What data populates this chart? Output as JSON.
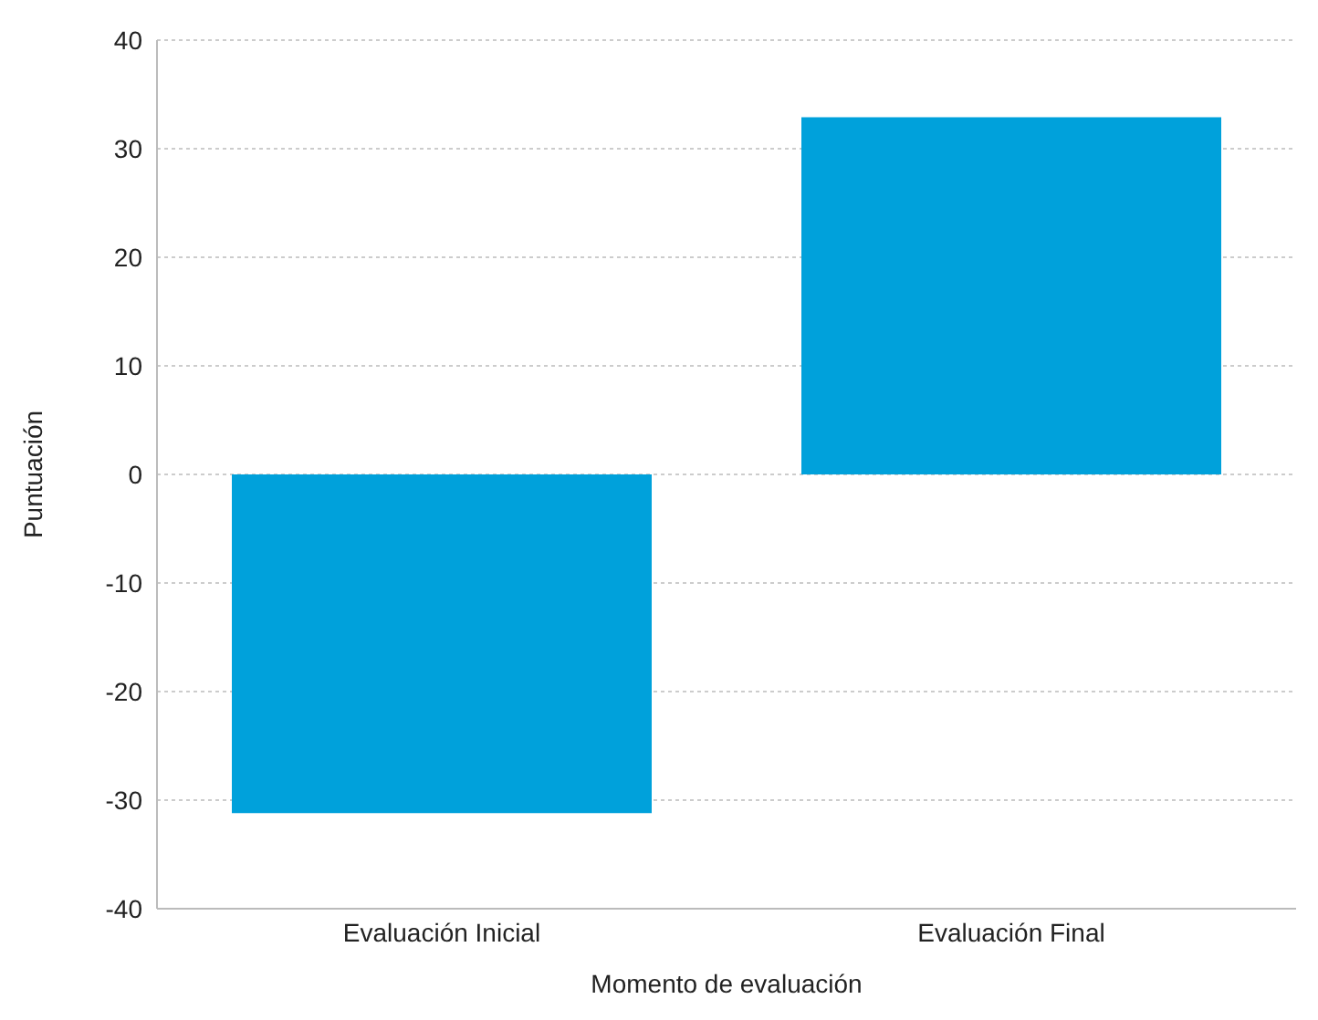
{
  "chart_data": {
    "type": "bar",
    "xlabel": "Momento de evaluación",
    "ylabel": "Puntuación",
    "categories": [
      "Evaluación Inicial",
      "Evaluación Final"
    ],
    "values": [
      -31.2,
      32.9
    ],
    "color": "#00a1db",
    "ylim": [
      -40,
      40
    ],
    "yticks": [
      -40,
      -30,
      -20,
      -10,
      0,
      10,
      20,
      30,
      40
    ],
    "grid": "y"
  }
}
